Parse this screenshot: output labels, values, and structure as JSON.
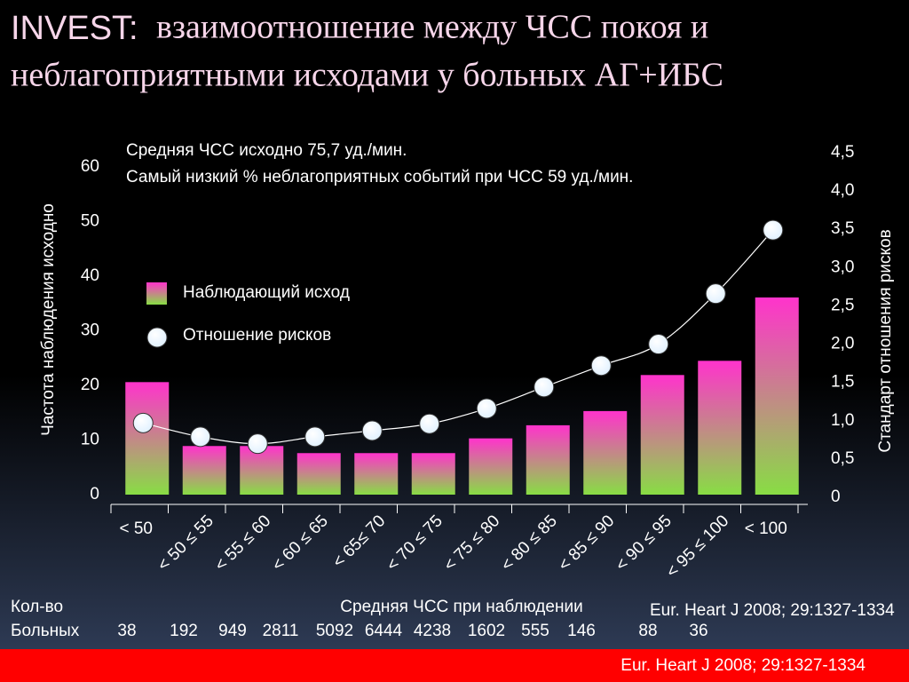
{
  "chart_data": {
    "type": "bar-line",
    "title_lead": "INVEST:",
    "title_lines": [
      "взаимоотношение между ЧСС покоя и",
      "неблагоприятными исходами у больных АГ+ИБС"
    ],
    "annotation_lines": [
      "Средняя ЧСС исходно 75,7 уд./мин.",
      "Самый низкий % неблагоприятных событий при ЧСС 59 уд./мин."
    ],
    "ylabel": "Частота наблюдения исходно",
    "y2label": "Стандарт отношения рисков",
    "xlabel": "Средняя ЧСС при наблюдении",
    "categories": [
      "< 50",
      "< 50 ≤ 55",
      "< 55 ≤ 60",
      "< 60 ≤ 65",
      "< 65≤ 70",
      "< 70 ≤ 75",
      "< 75 ≤ 80",
      "< 80 ≤ 85",
      "< 85 ≤ 90",
      "< 90 ≤ 95",
      "< 95 ≤ 100",
      "< 100"
    ],
    "series": [
      {
        "name": "Наблюдающий исход",
        "color_top": "#ff33cc",
        "color_bottom": "#88dd44",
        "values": [
          20.6,
          8.9,
          8.9,
          7.6,
          7.6,
          7.6,
          10.3,
          12.7,
          15.3,
          21.9,
          24.5,
          36.1
        ]
      },
      {
        "name": "Отношение рисков",
        "axis": "y2",
        "color": "#dff0ff",
        "values": [
          0.97,
          0.79,
          0.7,
          0.79,
          0.87,
          0.96,
          1.16,
          1.44,
          1.72,
          2.0,
          2.66,
          3.49
        ]
      }
    ],
    "ylim": [
      0,
      60
    ],
    "yticks": [
      0,
      10,
      20,
      30,
      40,
      50,
      60
    ],
    "y2lim": [
      0,
      4.5
    ],
    "y2ticks": [
      0,
      {
        "value": 0.5,
        "label": "0,5"
      },
      {
        "value": 1.0,
        "label": "1,0"
      },
      {
        "value": 1.5,
        "label": "1,5"
      },
      {
        "value": 2.0,
        "label": "2,0"
      },
      {
        "value": 2.5,
        "label": "2,5"
      },
      {
        "value": 3.0,
        "label": "3,0"
      },
      {
        "value": 3.5,
        "label": "3,5"
      },
      {
        "value": 4.0,
        "label": "4,0"
      },
      {
        "value": 4.5,
        "label": "4,5"
      }
    ],
    "patients_label_lines": [
      "Кол-во",
      "Больных"
    ],
    "patient_counts": [
      38,
      192,
      949,
      2811,
      5092,
      6444,
      4238,
      1602,
      555,
      146,
      88,
      36
    ],
    "source": "Eur. Heart J 2008; 29:1327-1334"
  }
}
